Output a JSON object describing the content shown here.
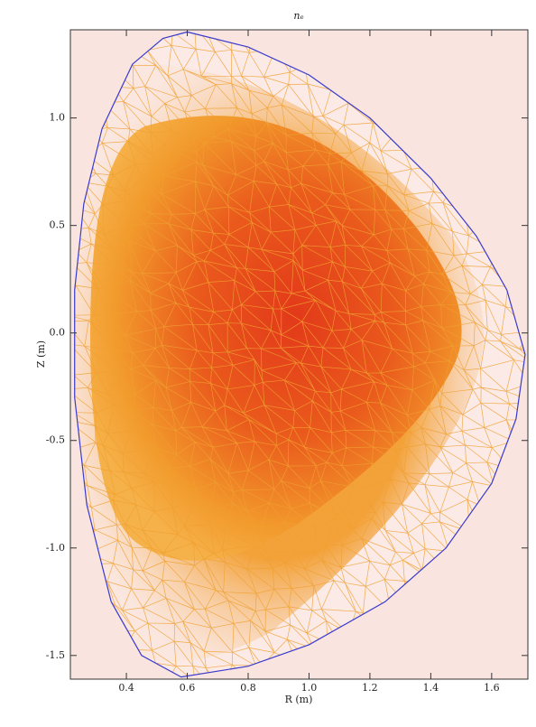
{
  "chart_data": {
    "type": "line",
    "title": "nₑ",
    "x_label": "R (m)",
    "y_label": "Z (m)",
    "x": [
      0.6,
      0.8,
      1.0,
      1.2,
      1.4,
      1.55,
      1.65,
      1.71,
      1.68,
      1.6,
      1.45,
      1.25,
      1.0,
      0.8,
      0.58,
      0.45,
      0.35,
      0.27,
      0.23,
      0.23,
      0.26,
      0.32,
      0.42,
      0.52,
      0.6
    ],
    "values": [
      1.4,
      1.33,
      1.2,
      1.0,
      0.72,
      0.45,
      0.2,
      -0.1,
      -0.4,
      -0.7,
      -1.0,
      -1.25,
      -1.45,
      -1.55,
      -1.6,
      -1.5,
      -1.25,
      -0.8,
      -0.3,
      0.2,
      0.6,
      0.95,
      1.25,
      1.37,
      1.4
    ],
    "color": "#3a3acc",
    "xlim": [
      0.216,
      1.719
    ],
    "ylim": [
      -1.61,
      1.41
    ],
    "xticks": [
      0.4,
      0.6,
      0.8,
      {
        "value": 1,
        "label": "1.0"
      },
      1.2,
      1.4,
      1.6
    ],
    "yticks": [
      -1.5,
      {
        "value": -1,
        "label": "-1.0"
      },
      -0.5,
      {
        "value": 0,
        "label": "0.0"
      },
      0.5,
      {
        "value": 1,
        "label": "1.0"
      }
    ],
    "grid": false
  }
}
